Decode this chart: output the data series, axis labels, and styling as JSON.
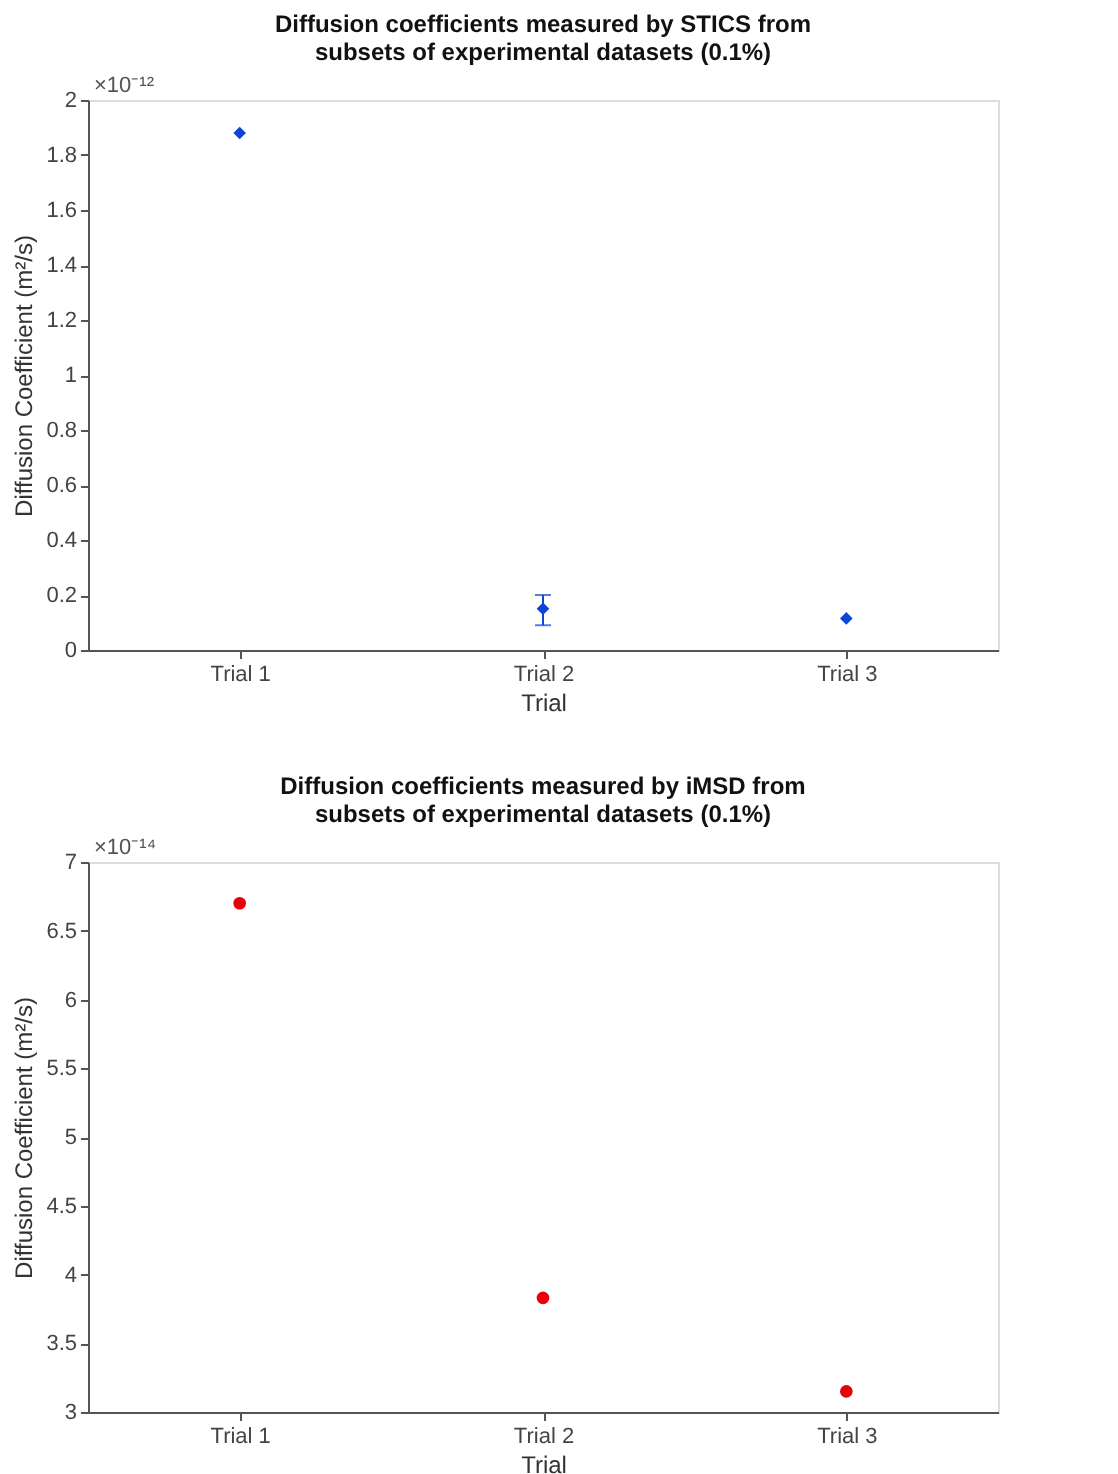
{
  "chart_data": [
    {
      "type": "scatter",
      "title": "Diffusion coefficients measured by STICS from subsets of experimental datasets (0.1%)",
      "xlabel": "Trial",
      "ylabel": "Diffusion Coefficient (m²/s)",
      "annotations": [
        "×10⁻¹²"
      ],
      "categories": [
        "Trial 1",
        "Trial 2",
        "Trial 3"
      ],
      "series": [
        {
          "color": "#0b46d8",
          "values": [
            1.88,
            0.15,
            0.115
          ],
          "errors": [
            null,
            [
              0.09,
              0.2
            ],
            null
          ]
        }
      ],
      "ylim": [
        0,
        2
      ],
      "yticks": [
        0,
        0.2,
        0.4,
        0.6,
        0.8,
        1,
        1.2,
        1.4,
        1.6,
        1.8,
        2
      ],
      "grid": false,
      "marker": "diamond"
    },
    {
      "type": "scatter",
      "title": "Diffusion coefficients measured by iMSD from subsets of experimental datasets (0.1%)",
      "xlabel": "Trial",
      "ylabel": "Diffusion Coefficient (m²/s)",
      "annotations": [
        "×10⁻¹⁴"
      ],
      "categories": [
        "Trial 1",
        "Trial 2",
        "Trial 3"
      ],
      "series": [
        {
          "color": "#e8000b",
          "values": [
            6.7,
            3.83,
            3.15
          ]
        }
      ],
      "ylim": [
        3,
        7
      ],
      "yticks": [
        3,
        3.5,
        4,
        4.5,
        5,
        5.5,
        6,
        6.5,
        7
      ],
      "grid": false,
      "marker": "circle"
    }
  ]
}
